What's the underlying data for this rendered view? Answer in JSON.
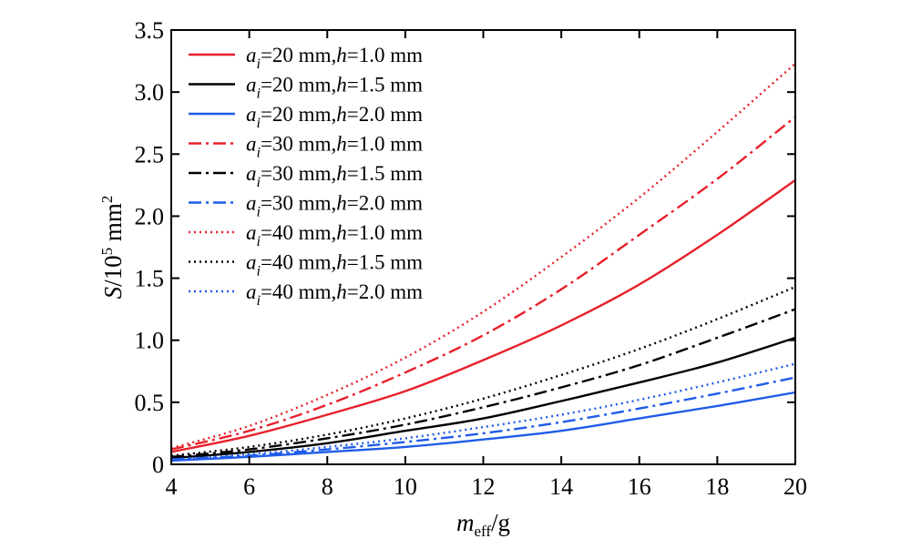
{
  "chart_data": {
    "type": "line",
    "xlabel": {
      "main": "m",
      "sub": "eff",
      "unit": "/g"
    },
    "ylabel": {
      "main": "S",
      "mid": "/10",
      "sup1": "5",
      "unit": " mm",
      "sup2": "2"
    },
    "xlim": [
      4,
      20
    ],
    "ylim": [
      0,
      3.5
    ],
    "xticks": [
      "4",
      "6",
      "8",
      "10",
      "12",
      "14",
      "16",
      "18",
      "20"
    ],
    "yticks": [
      "0",
      "0.5",
      "1.0",
      "1.5",
      "2.0",
      "2.5",
      "3.0",
      "3.5"
    ],
    "grid": false,
    "legend_position": "top-left",
    "x": [
      4,
      6,
      8,
      10,
      12,
      14,
      16,
      18,
      20
    ],
    "series": [
      {
        "name": "a_i=20 mm, h=1.0 mm",
        "label": {
          "sym": "a",
          "sub": "i",
          "val": "=20 mm",
          "sym2": "h",
          "val2": "=1.0 mm"
        },
        "color": "#e8202a",
        "style": "solid",
        "values": [
          0.1,
          0.23,
          0.4,
          0.59,
          0.84,
          1.12,
          1.45,
          1.85,
          2.29
        ]
      },
      {
        "name": "a_i=20 mm, h=1.5 mm",
        "label": {
          "sym": "a",
          "sub": "i",
          "val": "=20 mm",
          "sym2": "h",
          "val2": "=1.5 mm"
        },
        "color": "#000000",
        "style": "solid",
        "values": [
          0.05,
          0.1,
          0.17,
          0.27,
          0.37,
          0.51,
          0.66,
          0.82,
          1.02
        ]
      },
      {
        "name": "a_i=20 mm, h=2.0 mm",
        "label": {
          "sym": "a",
          "sub": "i",
          "val": "=20 mm",
          "sym2": "h",
          "val2": "=2.0 mm"
        },
        "color": "#1f5ce8",
        "style": "solid",
        "values": [
          0.03,
          0.06,
          0.1,
          0.14,
          0.2,
          0.27,
          0.37,
          0.47,
          0.58
        ]
      },
      {
        "name": "a_i=30 mm, h=1.0 mm",
        "label": {
          "sym": "a",
          "sub": "i",
          "val": "=30 mm",
          "sym2": "h",
          "val2": "=1.0 mm"
        },
        "color": "#e8202a",
        "style": "dashdot",
        "values": [
          0.12,
          0.27,
          0.48,
          0.74,
          1.04,
          1.41,
          1.85,
          2.3,
          2.8
        ]
      },
      {
        "name": "a_i=30 mm, h=1.5 mm",
        "label": {
          "sym": "a",
          "sub": "i",
          "val": "=30 mm",
          "sym2": "h",
          "val2": "=1.5 mm"
        },
        "color": "#000000",
        "style": "dashdot",
        "values": [
          0.06,
          0.12,
          0.21,
          0.32,
          0.46,
          0.62,
          0.8,
          1.02,
          1.25
        ]
      },
      {
        "name": "a_i=30 mm, h=2.0 mm",
        "label": {
          "sym": "a",
          "sub": "i",
          "val": "=30 mm",
          "sym2": "h",
          "val2": "=2.0 mm"
        },
        "color": "#1f5ce8",
        "style": "dashdot",
        "values": [
          0.04,
          0.07,
          0.12,
          0.18,
          0.25,
          0.34,
          0.45,
          0.57,
          0.7
        ]
      },
      {
        "name": "a_i=40 mm, h=1.0 mm",
        "label": {
          "sym": "a",
          "sub": "i",
          "val": "=40 mm",
          "sym2": "h",
          "val2": "=1.0 mm"
        },
        "color": "#e8202a",
        "style": "dotted",
        "values": [
          0.13,
          0.31,
          0.56,
          0.86,
          1.23,
          1.67,
          2.15,
          2.68,
          3.23
        ]
      },
      {
        "name": "a_i=40 mm, h=1.5 mm",
        "label": {
          "sym": "a",
          "sub": "i",
          "val": "=40 mm",
          "sym2": "h",
          "val2": "=1.5 mm"
        },
        "color": "#000000",
        "style": "dotted",
        "values": [
          0.07,
          0.14,
          0.24,
          0.37,
          0.53,
          0.72,
          0.93,
          1.17,
          1.43
        ]
      },
      {
        "name": "a_i=40 mm, h=2.0 mm",
        "label": {
          "sym": "a",
          "sub": "i",
          "val": "=40 mm",
          "sym2": "h",
          "val2": "=2.0 mm"
        },
        "color": "#1f5ce8",
        "style": "dotted",
        "values": [
          0.04,
          0.08,
          0.14,
          0.21,
          0.3,
          0.4,
          0.52,
          0.66,
          0.81
        ]
      }
    ]
  }
}
